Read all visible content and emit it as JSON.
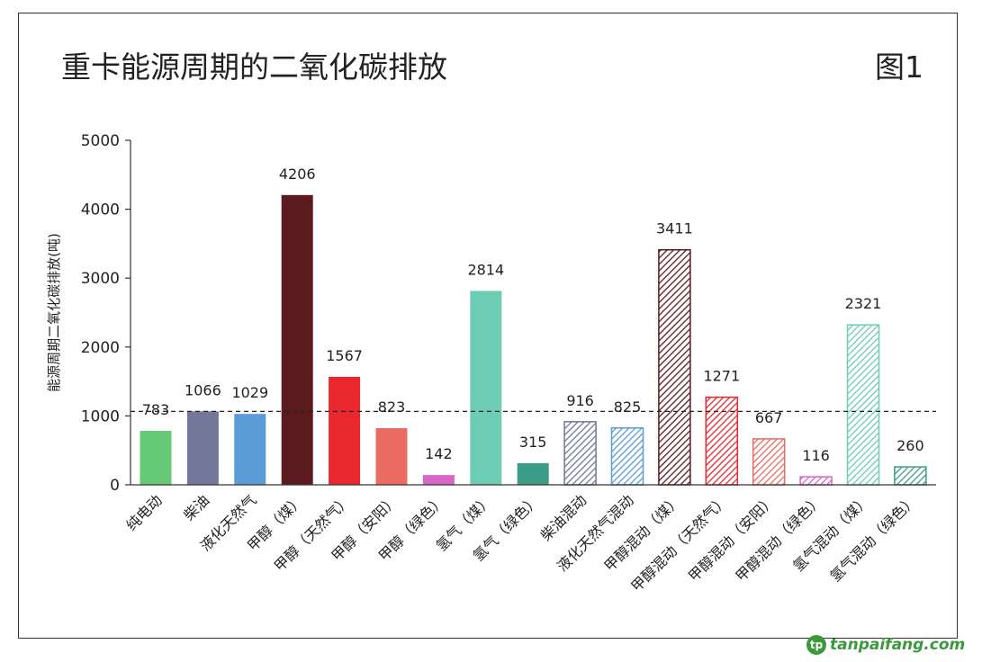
{
  "title": "重卡能源周期的二氧化碳排放",
  "figure_label": "图1",
  "watermark": {
    "logo_text": "tp",
    "text": "tanpaifang.com"
  },
  "chart_data": {
    "type": "bar",
    "title": "重卡能源周期的二氧化碳排放",
    "xlabel": "",
    "ylabel": "能源周期二氧化碳排放(吨)",
    "ylim": [
      0,
      5000
    ],
    "yticks": [
      0,
      1000,
      2000,
      3000,
      4000,
      5000
    ],
    "reference_line": 1066,
    "categories": [
      "纯电动",
      "柴油",
      "液化天然气",
      "甲醇（煤）",
      "甲醇（天然气）",
      "甲醇（安阳）",
      "甲醇（绿色）",
      "氢气（煤）",
      "氢气（绿色）",
      "柴油混动",
      "液化天然气混动",
      "甲醇混动（煤）",
      "甲醇混动（天然气）",
      "甲醇混动（安阳）",
      "甲醇混动（绿色）",
      "氢气混动（煤）",
      "氢气混动（绿色）"
    ],
    "values": [
      783,
      1066,
      1029,
      4206,
      1567,
      823,
      142,
      2814,
      315,
      916,
      825,
      3411,
      1271,
      667,
      116,
      2321,
      260
    ],
    "colors": [
      "#66c975",
      "#717899",
      "#5a9bd8",
      "#5b1a1e",
      "#e8282e",
      "#ea6b62",
      "#d865c8",
      "#6ccdb4",
      "#3b9c88",
      "#717899",
      "#5a9bd8",
      "#5b1a1e",
      "#e8282e",
      "#ea6b62",
      "#d865c8",
      "#6ccdb4",
      "#3b9c88"
    ],
    "hatched": [
      false,
      false,
      false,
      false,
      false,
      false,
      false,
      false,
      false,
      true,
      true,
      true,
      true,
      true,
      true,
      true,
      true
    ]
  }
}
